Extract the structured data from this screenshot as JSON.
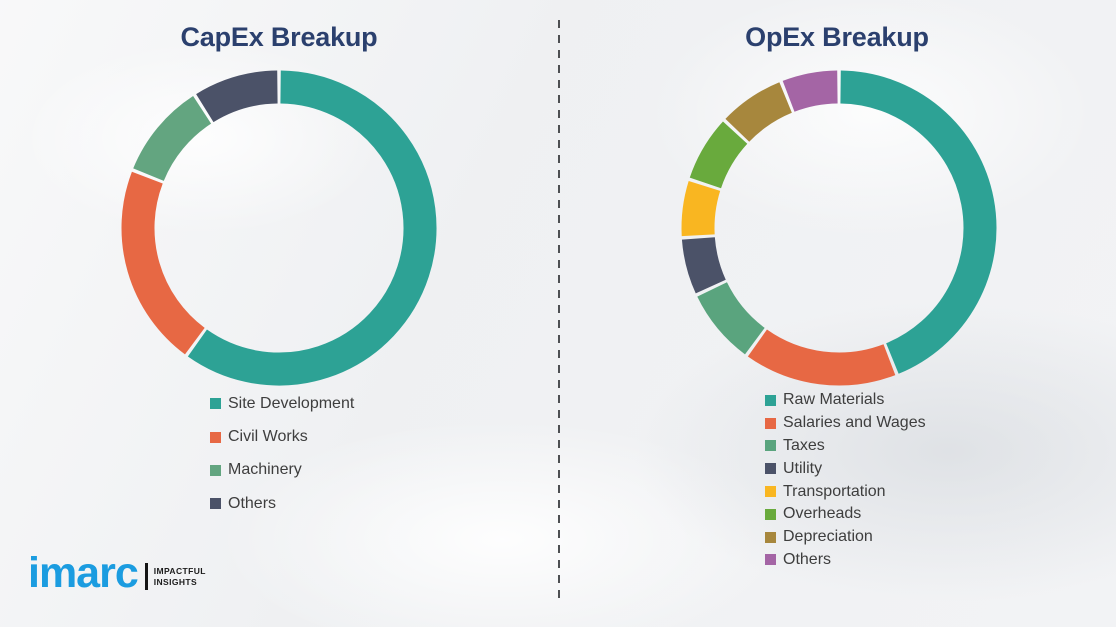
{
  "page": {
    "background_color": "#f1f2f4",
    "divider_style": "vertical dashed line",
    "title_color": "#2b406e",
    "legend_text_color": "#3e3e3e"
  },
  "chart_data": [
    {
      "type": "pie",
      "subtype": "donut",
      "title": "CapEx Breakup",
      "categories": [
        "Site Development",
        "Civil Works",
        "Machinery",
        "Others"
      ],
      "values": [
        60,
        21,
        10,
        9
      ],
      "values_are_estimated_percent": true,
      "colors": [
        "#2da295",
        "#e76844",
        "#63a580",
        "#4b5268"
      ],
      "legend_position": "below-chart-left",
      "data_labels_shown": false
    },
    {
      "type": "pie",
      "subtype": "donut",
      "title": "OpEx Breakup",
      "categories": [
        "Raw Materials",
        "Salaries and Wages",
        "Taxes",
        "Utility",
        "Transportation",
        "Overheads",
        "Depreciation",
        "Others"
      ],
      "values": [
        44,
        16,
        8,
        6,
        6,
        7,
        7,
        6
      ],
      "values_are_estimated_percent": true,
      "colors": [
        "#2da295",
        "#e76844",
        "#5aa47e",
        "#4b5268",
        "#f9b621",
        "#69aa3d",
        "#a7873d",
        "#a465a5"
      ],
      "legend_position": "below-chart-left",
      "data_labels_shown": false
    }
  ],
  "logo": {
    "brand": "imarc",
    "tagline_line1": "IMPACTFUL",
    "tagline_line2": "INSIGHTS",
    "brand_color": "#1b9ce0"
  }
}
